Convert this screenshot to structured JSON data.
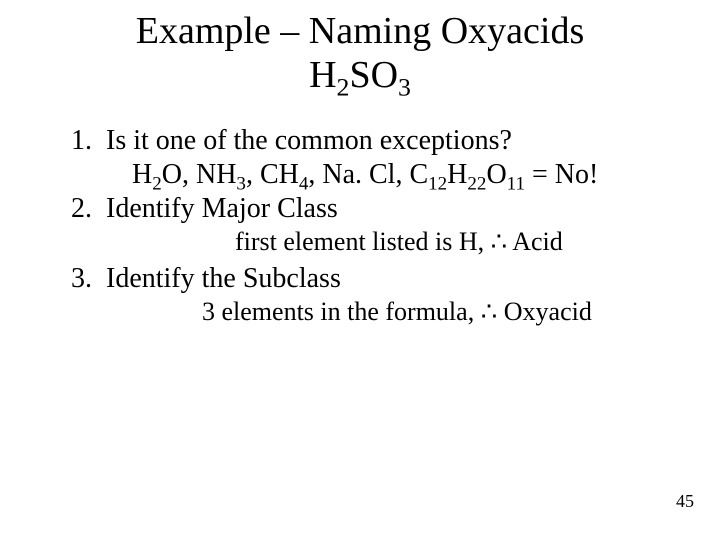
{
  "colors": {
    "bg": "#ffffff",
    "text": "#000000"
  },
  "title": {
    "line1": "Example – Naming Oxyacids",
    "formula_base": "H",
    "formula_sub1": "2",
    "formula_mid": "SO",
    "formula_sub2": "3",
    "fontsize": 38
  },
  "items": [
    {
      "n": "1.",
      "text": "Is it one of the common exceptions?",
      "sub": {
        "style": "indent-a",
        "parts": [
          {
            "t": "H"
          },
          {
            "sub": "2"
          },
          {
            "t": "O, NH"
          },
          {
            "sub": "3"
          },
          {
            "t": ", CH"
          },
          {
            "sub": "4"
          },
          {
            "t": ", Na. Cl, C"
          },
          {
            "sub": "12"
          },
          {
            "t": "H"
          },
          {
            "sub": "22"
          },
          {
            "t": "O"
          },
          {
            "sub": "11"
          },
          {
            "t": "  = No!"
          }
        ]
      }
    },
    {
      "n": "2.",
      "text": "Identify Major Class",
      "sub": {
        "style": "indent-b",
        "parts": [
          {
            "t": "first element listed is H,  "
          },
          {
            "sym": "∴"
          },
          {
            "t": " Acid"
          }
        ]
      }
    },
    {
      "n": "3.",
      "text": "Identify the Subclass",
      "sub": {
        "style": "indent-c",
        "parts": [
          {
            "t": "3 elements in the formula,  "
          },
          {
            "sym": "∴"
          },
          {
            "t": " Oxyacid"
          }
        ]
      }
    }
  ],
  "body_fontsize": 28,
  "sub_fontsize": 26,
  "page_number": "45"
}
